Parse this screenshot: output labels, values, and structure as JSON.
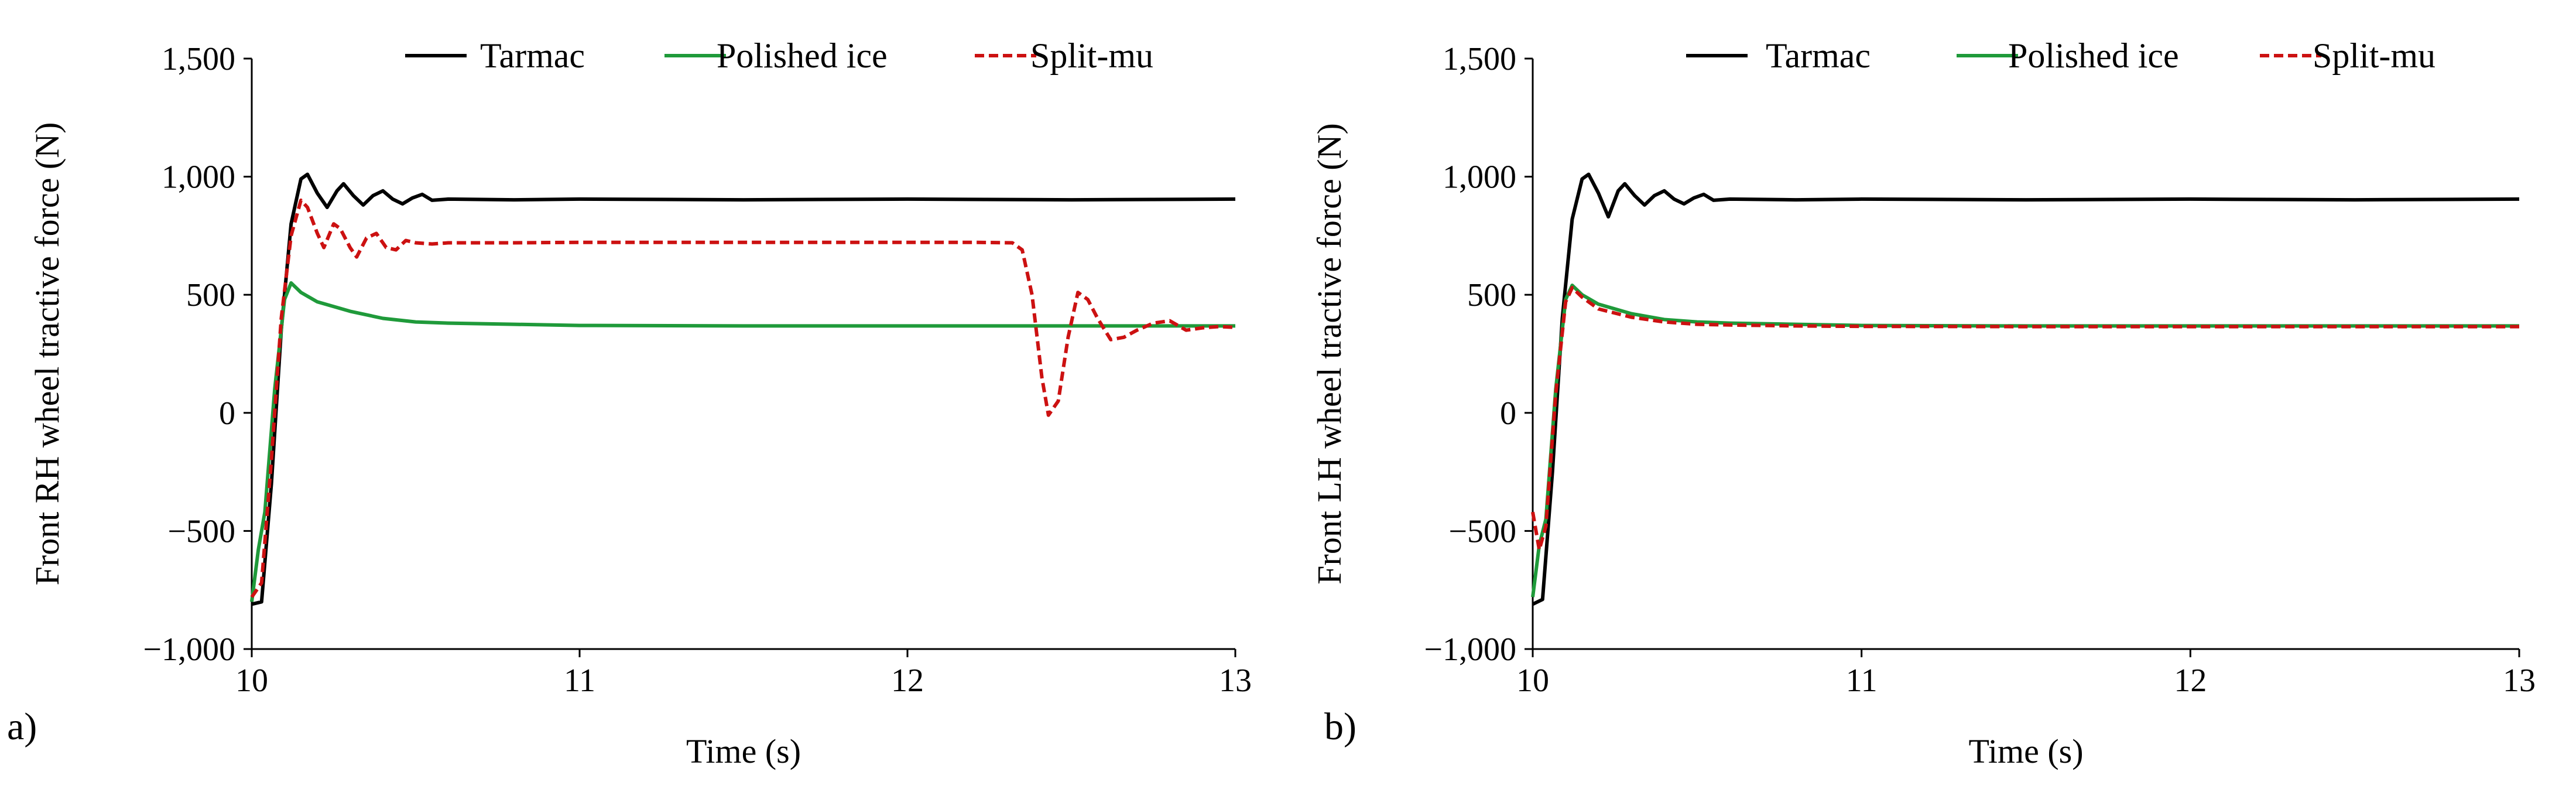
{
  "figure": {
    "panel_labels": [
      "a)",
      "b)"
    ]
  },
  "chart_data": [
    {
      "type": "line",
      "panel": "a)",
      "title": "",
      "xlabel": "Time (s)",
      "ylabel": "Front RH wheel tractive force (N)",
      "xlim": [
        10,
        13
      ],
      "ylim": [
        -1000,
        1500
      ],
      "xticks": [
        10,
        11,
        12,
        13
      ],
      "xtick_labels": [
        "10",
        "11",
        "12",
        "13"
      ],
      "yticks": [
        -1000,
        -500,
        0,
        500,
        1000,
        1500
      ],
      "ytick_labels": [
        "−1,000",
        "−500",
        "0",
        "500",
        "1,000",
        "1,500"
      ],
      "grid": false,
      "legend_position": "top",
      "series": [
        {
          "name": "Tarmac",
          "color": "#000000",
          "dash": "solid",
          "x": [
            10.0,
            10.03,
            10.06,
            10.09,
            10.12,
            10.15,
            10.17,
            10.2,
            10.23,
            10.26,
            10.28,
            10.31,
            10.34,
            10.37,
            10.4,
            10.43,
            10.46,
            10.49,
            10.52,
            10.55,
            10.6,
            10.8,
            11.0,
            11.5,
            12.0,
            12.5,
            13.0
          ],
          "y": [
            -810,
            -800,
            -300,
            350,
            800,
            990,
            1010,
            930,
            870,
            940,
            970,
            920,
            880,
            920,
            940,
            905,
            885,
            910,
            925,
            900,
            905,
            902,
            905,
            902,
            905,
            902,
            905
          ]
        },
        {
          "name": "Polished ice",
          "color": "#1f9a3a",
          "dash": "solid",
          "x": [
            10.0,
            10.02,
            10.04,
            10.07,
            10.1,
            10.12,
            10.15,
            10.2,
            10.3,
            10.4,
            10.5,
            10.6,
            10.8,
            11.0,
            11.5,
            12.0,
            12.5,
            13.0
          ],
          "y": [
            -800,
            -580,
            -420,
            100,
            480,
            550,
            510,
            470,
            430,
            400,
            385,
            380,
            375,
            370,
            368,
            368,
            368,
            368
          ]
        },
        {
          "name": "Split-mu",
          "color": "#cc1111",
          "dash": "dashed",
          "x": [
            10.0,
            10.03,
            10.06,
            10.09,
            10.12,
            10.15,
            10.17,
            10.2,
            10.22,
            10.25,
            10.27,
            10.3,
            10.32,
            10.35,
            10.38,
            10.41,
            10.44,
            10.47,
            10.5,
            10.55,
            10.6,
            10.8,
            11.0,
            11.5,
            12.0,
            12.2,
            12.32,
            12.35,
            12.38,
            12.41,
            12.43,
            12.46,
            12.49,
            12.52,
            12.55,
            12.58,
            12.62,
            12.66,
            12.7,
            12.75,
            12.8,
            12.85,
            12.9,
            12.95,
            13.0
          ],
          "y": [
            -780,
            -720,
            -200,
            400,
            750,
            900,
            870,
            760,
            700,
            800,
            780,
            700,
            660,
            740,
            760,
            700,
            690,
            730,
            720,
            715,
            720,
            720,
            722,
            722,
            722,
            722,
            720,
            690,
            500,
            150,
            -10,
            50,
            320,
            510,
            480,
            400,
            310,
            320,
            350,
            380,
            390,
            350,
            360,
            365,
            362
          ]
        }
      ]
    },
    {
      "type": "line",
      "panel": "b)",
      "title": "",
      "xlabel": "Time (s)",
      "ylabel": "Front LH wheel tractive force (N)",
      "xlim": [
        10,
        13
      ],
      "ylim": [
        -1000,
        1500
      ],
      "xticks": [
        10,
        11,
        12,
        13
      ],
      "xtick_labels": [
        "10",
        "11",
        "12",
        "13"
      ],
      "yticks": [
        -1000,
        -500,
        0,
        500,
        1000,
        1500
      ],
      "ytick_labels": [
        "−1,000",
        "−500",
        "0",
        "500",
        "1,000",
        "1,500"
      ],
      "grid": false,
      "legend_position": "top",
      "series": [
        {
          "name": "Tarmac",
          "color": "#000000",
          "dash": "solid",
          "x": [
            10.0,
            10.03,
            10.06,
            10.09,
            10.12,
            10.15,
            10.17,
            10.2,
            10.23,
            10.26,
            10.28,
            10.31,
            10.34,
            10.37,
            10.4,
            10.43,
            10.46,
            10.49,
            10.52,
            10.55,
            10.6,
            10.8,
            11.0,
            11.5,
            12.0,
            12.5,
            13.0
          ],
          "y": [
            -810,
            -790,
            -250,
            400,
            820,
            990,
            1010,
            930,
            830,
            940,
            970,
            920,
            880,
            920,
            940,
            905,
            885,
            910,
            925,
            900,
            905,
            902,
            905,
            902,
            905,
            902,
            905
          ]
        },
        {
          "name": "Polished ice",
          "color": "#1f9a3a",
          "dash": "solid",
          "x": [
            10.0,
            10.02,
            10.04,
            10.07,
            10.1,
            10.12,
            10.15,
            10.2,
            10.3,
            10.4,
            10.5,
            10.6,
            10.8,
            11.0,
            11.5,
            12.0,
            12.5,
            13.0
          ],
          "y": [
            -780,
            -560,
            -450,
            100,
            480,
            540,
            500,
            460,
            420,
            395,
            385,
            380,
            375,
            370,
            368,
            368,
            368,
            368
          ]
        },
        {
          "name": "Split-mu",
          "color": "#cc1111",
          "dash": "dashed",
          "x": [
            10.0,
            10.02,
            10.04,
            10.07,
            10.1,
            10.12,
            10.15,
            10.2,
            10.3,
            10.4,
            10.5,
            10.6,
            10.8,
            11.0,
            11.5,
            12.0,
            12.5,
            13.0
          ],
          "y": [
            -420,
            -580,
            -480,
            80,
            470,
            530,
            490,
            440,
            405,
            385,
            375,
            372,
            368,
            366,
            365,
            365,
            365,
            365
          ]
        }
      ]
    }
  ]
}
